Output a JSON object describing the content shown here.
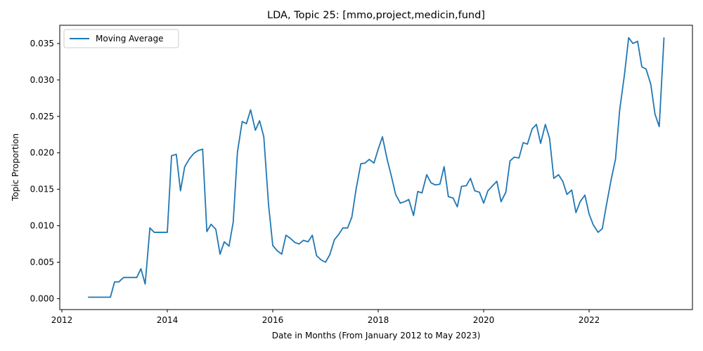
{
  "chart_data": {
    "type": "line",
    "title": "LDA, Topic 25: [mmo,project,medicin,fund]",
    "xlabel": "Date in Months (From January 2012 to May 2023)",
    "ylabel": "Topic Proportion",
    "xlim": [
      2011.96,
      2023.96
    ],
    "ylim": [
      -0.0015,
      0.0375
    ],
    "xticks": [
      2012,
      2014,
      2016,
      2018,
      2020,
      2022
    ],
    "xtick_labels": [
      "2012",
      "2014",
      "2016",
      "2018",
      "2020",
      "2022"
    ],
    "yticks": [
      0.0,
      0.005,
      0.01,
      0.015,
      0.02,
      0.025,
      0.03,
      0.035
    ],
    "ytick_labels": [
      "0.000",
      "0.005",
      "0.010",
      "0.015",
      "0.020",
      "0.025",
      "0.030",
      "0.035"
    ],
    "grid": false,
    "legend_position": "top-left",
    "series": [
      {
        "name": "Moving Average",
        "color": "#1f77b4",
        "points": [
          [
            2012.5,
            0.0002
          ],
          [
            2012.58,
            0.0002
          ],
          [
            2012.67,
            0.0002
          ],
          [
            2012.75,
            0.0002
          ],
          [
            2012.83,
            0.0002
          ],
          [
            2012.92,
            0.0002
          ],
          [
            2013.0,
            0.0023
          ],
          [
            2013.08,
            0.0023
          ],
          [
            2013.17,
            0.0029
          ],
          [
            2013.25,
            0.0029
          ],
          [
            2013.33,
            0.0029
          ],
          [
            2013.42,
            0.0029
          ],
          [
            2013.5,
            0.0041
          ],
          [
            2013.58,
            0.002
          ],
          [
            2013.67,
            0.0097
          ],
          [
            2013.75,
            0.0091
          ],
          [
            2013.83,
            0.0091
          ],
          [
            2013.92,
            0.0091
          ],
          [
            2014.0,
            0.0091
          ],
          [
            2014.08,
            0.0196
          ],
          [
            2014.17,
            0.0198
          ],
          [
            2014.25,
            0.0148
          ],
          [
            2014.33,
            0.0181
          ],
          [
            2014.42,
            0.0192
          ],
          [
            2014.5,
            0.0199
          ],
          [
            2014.58,
            0.0203
          ],
          [
            2014.67,
            0.0205
          ],
          [
            2014.75,
            0.0092
          ],
          [
            2014.83,
            0.0102
          ],
          [
            2014.92,
            0.0095
          ],
          [
            2015.0,
            0.0061
          ],
          [
            2015.08,
            0.0078
          ],
          [
            2015.17,
            0.0072
          ],
          [
            2015.25,
            0.0105
          ],
          [
            2015.33,
            0.0201
          ],
          [
            2015.42,
            0.0243
          ],
          [
            2015.5,
            0.024
          ],
          [
            2015.58,
            0.0259
          ],
          [
            2015.67,
            0.0231
          ],
          [
            2015.75,
            0.0244
          ],
          [
            2015.83,
            0.0222
          ],
          [
            2015.92,
            0.0129
          ],
          [
            2016.0,
            0.0073
          ],
          [
            2016.08,
            0.0066
          ],
          [
            2016.17,
            0.0061
          ],
          [
            2016.25,
            0.0087
          ],
          [
            2016.33,
            0.0083
          ],
          [
            2016.42,
            0.0077
          ],
          [
            2016.5,
            0.0075
          ],
          [
            2016.58,
            0.008
          ],
          [
            2016.67,
            0.0078
          ],
          [
            2016.75,
            0.0087
          ],
          [
            2016.83,
            0.0059
          ],
          [
            2016.92,
            0.0053
          ],
          [
            2017.0,
            0.005
          ],
          [
            2017.08,
            0.006
          ],
          [
            2017.17,
            0.0081
          ],
          [
            2017.25,
            0.0088
          ],
          [
            2017.33,
            0.0097
          ],
          [
            2017.42,
            0.0097
          ],
          [
            2017.5,
            0.0112
          ],
          [
            2017.58,
            0.015
          ],
          [
            2017.67,
            0.0185
          ],
          [
            2017.75,
            0.0186
          ],
          [
            2017.83,
            0.0191
          ],
          [
            2017.92,
            0.0186
          ],
          [
            2018.0,
            0.0205
          ],
          [
            2018.08,
            0.0222
          ],
          [
            2018.17,
            0.0191
          ],
          [
            2018.25,
            0.0168
          ],
          [
            2018.33,
            0.0143
          ],
          [
            2018.42,
            0.0131
          ],
          [
            2018.5,
            0.0133
          ],
          [
            2018.58,
            0.0136
          ],
          [
            2018.67,
            0.0114
          ],
          [
            2018.75,
            0.0147
          ],
          [
            2018.83,
            0.0145
          ],
          [
            2018.92,
            0.017
          ],
          [
            2019.0,
            0.0159
          ],
          [
            2019.08,
            0.0156
          ],
          [
            2019.17,
            0.0157
          ],
          [
            2019.25,
            0.0181
          ],
          [
            2019.33,
            0.014
          ],
          [
            2019.42,
            0.0138
          ],
          [
            2019.5,
            0.0126
          ],
          [
            2019.58,
            0.0154
          ],
          [
            2019.67,
            0.0155
          ],
          [
            2019.75,
            0.0165
          ],
          [
            2019.83,
            0.0148
          ],
          [
            2019.92,
            0.0146
          ],
          [
            2020.0,
            0.0131
          ],
          [
            2020.08,
            0.0148
          ],
          [
            2020.17,
            0.0155
          ],
          [
            2020.25,
            0.0161
          ],
          [
            2020.33,
            0.0133
          ],
          [
            2020.42,
            0.0146
          ],
          [
            2020.5,
            0.0189
          ],
          [
            2020.58,
            0.0194
          ],
          [
            2020.67,
            0.0193
          ],
          [
            2020.75,
            0.0214
          ],
          [
            2020.83,
            0.0212
          ],
          [
            2020.92,
            0.0233
          ],
          [
            2021.0,
            0.0239
          ],
          [
            2021.08,
            0.0213
          ],
          [
            2021.17,
            0.0239
          ],
          [
            2021.25,
            0.022
          ],
          [
            2021.33,
            0.0165
          ],
          [
            2021.42,
            0.017
          ],
          [
            2021.5,
            0.0161
          ],
          [
            2021.58,
            0.0143
          ],
          [
            2021.67,
            0.0149
          ],
          [
            2021.75,
            0.0118
          ],
          [
            2021.83,
            0.0133
          ],
          [
            2021.92,
            0.0142
          ],
          [
            2022.0,
            0.0116
          ],
          [
            2022.08,
            0.0101
          ],
          [
            2022.17,
            0.0091
          ],
          [
            2022.25,
            0.0096
          ],
          [
            2022.33,
            0.0129
          ],
          [
            2022.42,
            0.0164
          ],
          [
            2022.5,
            0.0191
          ],
          [
            2022.58,
            0.0259
          ],
          [
            2022.67,
            0.0307
          ],
          [
            2022.75,
            0.0358
          ],
          [
            2022.83,
            0.035
          ],
          [
            2022.92,
            0.0353
          ],
          [
            2023.0,
            0.0318
          ],
          [
            2023.08,
            0.0315
          ],
          [
            2023.17,
            0.0294
          ],
          [
            2023.25,
            0.0253
          ],
          [
            2023.33,
            0.0236
          ],
          [
            2023.42,
            0.0358
          ]
        ]
      }
    ]
  }
}
